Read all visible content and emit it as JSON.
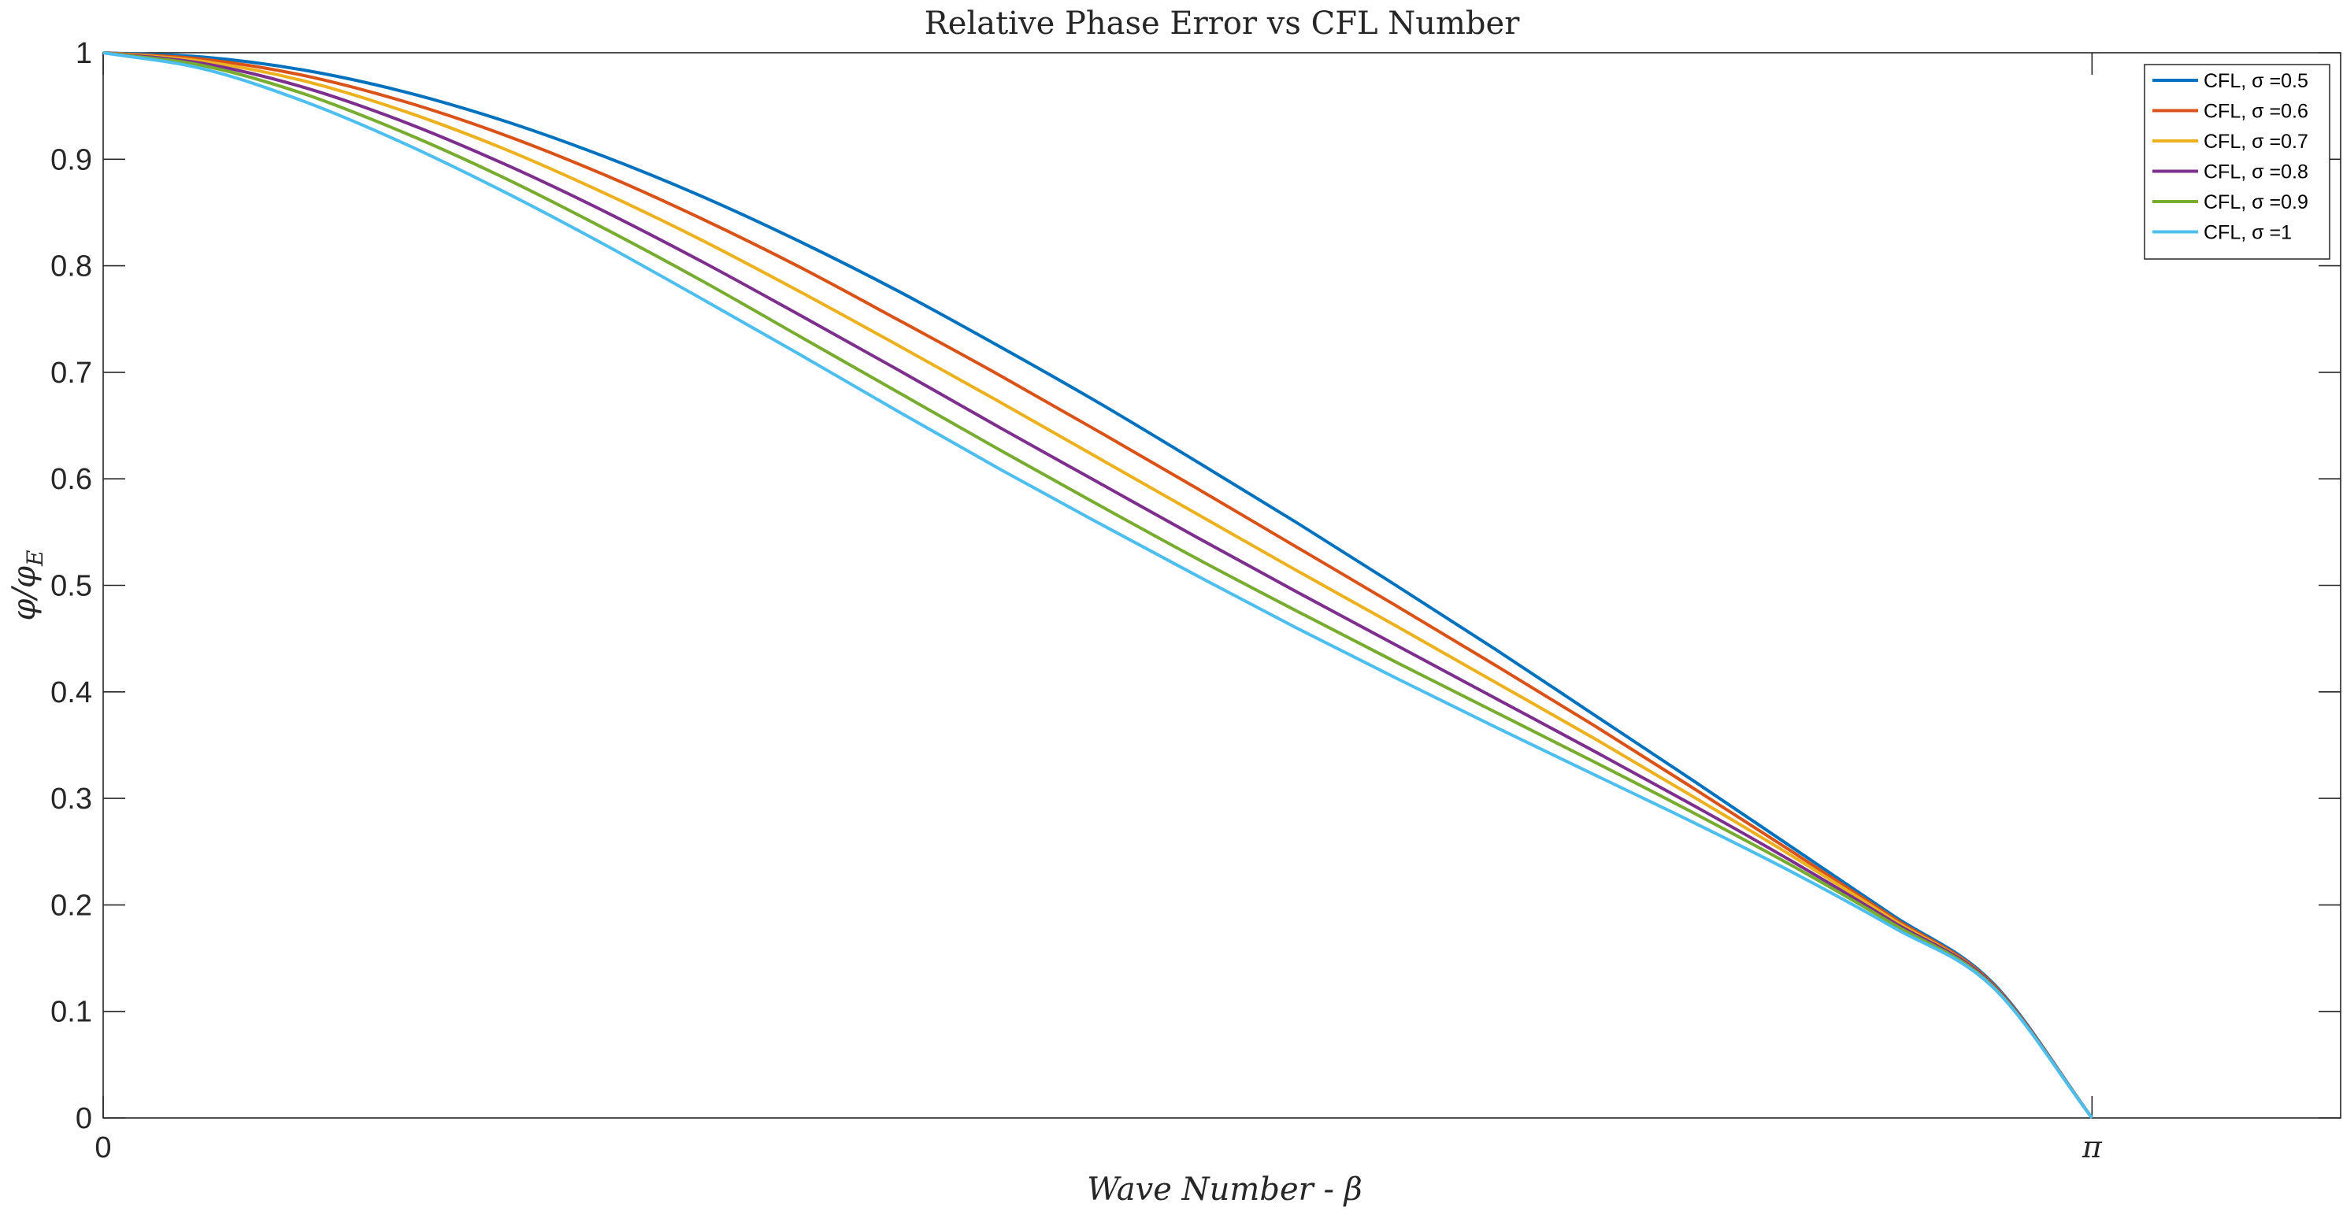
{
  "chart_data": {
    "type": "line",
    "title": "Relative Phase Error vs CFL Number",
    "xlabel": "Wave Number - β",
    "ylabel": "φ/φ_E",
    "xlim": [
      0,
      3.5343
    ],
    "ylim": [
      0,
      1
    ],
    "x_ticks": [
      {
        "value": 0,
        "label": "0"
      },
      {
        "value": 3.14159,
        "label": "π"
      }
    ],
    "y_ticks": [
      {
        "value": 0,
        "label": "0"
      },
      {
        "value": 0.1,
        "label": "0.1"
      },
      {
        "value": 0.2,
        "label": "0.2"
      },
      {
        "value": 0.3,
        "label": "0.3"
      },
      {
        "value": 0.4,
        "label": "0.4"
      },
      {
        "value": 0.5,
        "label": "0.5"
      },
      {
        "value": 0.6,
        "label": "0.6"
      },
      {
        "value": 0.7,
        "label": "0.7"
      },
      {
        "value": 0.8,
        "label": "0.8"
      },
      {
        "value": 0.9,
        "label": "0.9"
      },
      {
        "value": 1,
        "label": "1"
      }
    ],
    "grid": false,
    "legend_position": "top-right",
    "x": [
      0,
      0.1571,
      0.3142,
      0.4712,
      0.6283,
      0.7854,
      0.9425,
      1.0996,
      1.2566,
      1.4137,
      1.5708,
      1.7279,
      1.885,
      2.042,
      2.1991,
      2.3562,
      2.5133,
      2.6704,
      2.8274,
      2.9845,
      3.1416
    ],
    "series": [
      {
        "name": "CFL, σ =0.5",
        "legend_label": "CFL, σ =0.5",
        "color": "#0072BD",
        "values": [
          1.0,
          0.996,
          0.984,
          0.964,
          0.937,
          0.904,
          0.866,
          0.823,
          0.776,
          0.725,
          0.672,
          0.616,
          0.559,
          0.5,
          0.44,
          0.378,
          0.316,
          0.253,
          0.19,
          0.127,
          0.0
        ]
      },
      {
        "name": "CFL, σ =0.6",
        "legend_label": "CFL, σ =0.6",
        "color": "#D95319",
        "values": [
          1.0,
          0.994,
          0.979,
          0.955,
          0.924,
          0.887,
          0.845,
          0.799,
          0.749,
          0.698,
          0.645,
          0.591,
          0.536,
          0.481,
          0.425,
          0.368,
          0.309,
          0.249,
          0.188,
          0.126,
          0.0
        ]
      },
      {
        "name": "CFL, σ =0.7",
        "legend_label": "CFL, σ =0.7",
        "color": "#EDB120",
        "values": [
          1.0,
          0.992,
          0.974,
          0.946,
          0.911,
          0.87,
          0.825,
          0.776,
          0.725,
          0.673,
          0.62,
          0.567,
          0.514,
          0.462,
          0.409,
          0.356,
          0.301,
          0.245,
          0.186,
          0.125,
          0.0
        ]
      },
      {
        "name": "CFL, σ =0.8",
        "legend_label": "CFL, σ =0.8",
        "color": "#7E2F8E",
        "values": [
          1.0,
          0.99,
          0.968,
          0.936,
          0.897,
          0.853,
          0.805,
          0.754,
          0.702,
          0.649,
          0.597,
          0.545,
          0.494,
          0.444,
          0.394,
          0.344,
          0.293,
          0.24,
          0.184,
          0.125,
          0.0
        ]
      },
      {
        "name": "CFL, σ =0.9",
        "legend_label": "CFL, σ =0.9",
        "color": "#77AC30",
        "values": [
          1.0,
          0.988,
          0.962,
          0.926,
          0.884,
          0.837,
          0.787,
          0.734,
          0.681,
          0.628,
          0.576,
          0.525,
          0.476,
          0.428,
          0.381,
          0.334,
          0.286,
          0.236,
          0.182,
          0.124,
          0.0
        ]
      },
      {
        "name": "CFL, σ =1",
        "legend_label": "CFL, σ =1",
        "color": "#4DBEEE",
        "values": [
          1.0,
          0.985,
          0.955,
          0.916,
          0.871,
          0.822,
          0.77,
          0.717,
          0.663,
          0.61,
          0.559,
          0.509,
          0.46,
          0.413,
          0.367,
          0.322,
          0.277,
          0.23,
          0.179,
          0.123,
          0.0
        ]
      }
    ]
  }
}
